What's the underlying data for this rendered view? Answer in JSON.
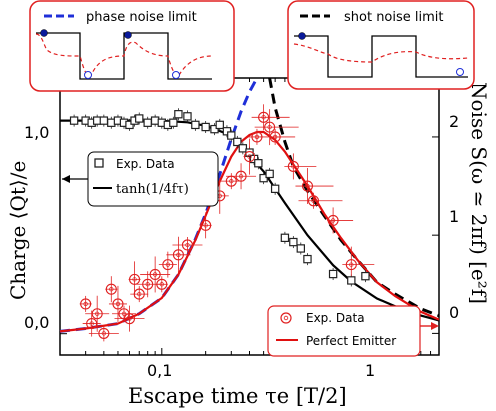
{
  "chart_data": {
    "type": "scatter",
    "x_scale": "log",
    "xlim": [
      0.02,
      8
    ],
    "ylim_left": [
      -0.1,
      1.2
    ],
    "ylim_right": [
      -0.22,
      2.6
    ],
    "xlabel": "Escape time τe   [T/2]",
    "ylabel_left": "Charge ⟨Qt⟩/e",
    "ylabel_right": "Noise S(ω ≃ 2πf)   [e²f]",
    "x_ticks": [
      {
        "value": 0.1,
        "label": "0,1"
      },
      {
        "value": 1,
        "label": "1"
      }
    ],
    "y_left_ticks": [
      {
        "value": 0,
        "label": "0,0"
      },
      {
        "value": 1,
        "label": "1,0"
      }
    ],
    "y_right_ticks": [
      {
        "value": 0,
        "label": "0"
      },
      {
        "value": 1,
        "label": "1"
      },
      {
        "value": 2,
        "label": "2"
      }
    ],
    "series": [
      {
        "name": "Exp. Data",
        "axis": "left",
        "marker": "square",
        "color": "#222222",
        "x": [
          0.025,
          0.03,
          0.033,
          0.036,
          0.04,
          0.045,
          0.05,
          0.055,
          0.06,
          0.065,
          0.07,
          0.08,
          0.09,
          0.1,
          0.11,
          0.12,
          0.13,
          0.15,
          0.17,
          0.2,
          0.23,
          0.25,
          0.28,
          0.3,
          0.33,
          0.36,
          0.4,
          0.43,
          0.46,
          0.5,
          0.55,
          0.6,
          0.7,
          0.8,
          0.9,
          1.0,
          1.5,
          2.0,
          2.5
        ],
        "y": [
          1.0,
          1.0,
          0.99,
          1.0,
          1.0,
          0.99,
          1.0,
          0.99,
          0.98,
          1.0,
          1.01,
          0.99,
          1.0,
          0.99,
          0.98,
          0.99,
          1.03,
          1.02,
          0.98,
          0.97,
          0.96,
          0.98,
          0.95,
          0.93,
          0.9,
          0.87,
          0.85,
          0.82,
          0.8,
          0.73,
          0.75,
          0.68,
          0.45,
          0.43,
          0.4,
          0.35,
          0.28,
          0.25,
          0.27
        ]
      },
      {
        "name": "tanh(1/4fτ)",
        "axis": "left",
        "kind": "line",
        "color": "#000000",
        "x": [
          0.02,
          0.05,
          0.1,
          0.15,
          0.2,
          0.3,
          0.5,
          0.7,
          1,
          1.5,
          2,
          3,
          5,
          8
        ],
        "y": [
          1.0,
          1.0,
          0.9993,
          0.992,
          0.9757,
          0.9309,
          0.7616,
          0.6135,
          0.4621,
          0.3215,
          0.2449,
          0.1651,
          0.0997,
          0.0624
        ]
      },
      {
        "name": "phase noise limit",
        "axis": "right",
        "kind": "line",
        "style": "dashed",
        "color": "#1f2fd8",
        "x": [
          0.02,
          0.03,
          0.05,
          0.07,
          0.1,
          0.13,
          0.17,
          0.2,
          0.25,
          0.3,
          0.35,
          0.4,
          0.45
        ],
        "y": [
          0.02,
          0.05,
          0.1,
          0.2,
          0.36,
          0.6,
          0.96,
          1.22,
          1.62,
          1.98,
          2.26,
          2.46,
          2.6
        ]
      },
      {
        "name": "shot noise limit",
        "axis": "right",
        "kind": "line",
        "style": "dashed",
        "color": "#000000",
        "x": [
          0.55,
          0.6,
          0.7,
          0.8,
          1.0,
          1.3,
          1.7,
          2.2,
          3.0,
          4.0,
          6.0,
          8.0
        ],
        "y": [
          2.6,
          2.3,
          1.95,
          1.7,
          1.45,
          1.2,
          0.95,
          0.75,
          0.52,
          0.4,
          0.25,
          0.18
        ]
      },
      {
        "name": "Exp. Data",
        "axis": "right",
        "marker": "circle",
        "color": "#e02020",
        "x": [
          0.03,
          0.033,
          0.036,
          0.04,
          0.045,
          0.05,
          0.055,
          0.06,
          0.065,
          0.07,
          0.08,
          0.09,
          0.1,
          0.11,
          0.13,
          0.15,
          0.2,
          0.25,
          0.3,
          0.35,
          0.4,
          0.45,
          0.5,
          0.55,
          0.6,
          0.8,
          1.0,
          1.1,
          1.5,
          2.0
        ],
        "y": [
          0.3,
          0.1,
          0.2,
          0.0,
          0.45,
          0.3,
          0.2,
          0.15,
          0.55,
          0.4,
          0.5,
          0.6,
          0.5,
          0.7,
          0.8,
          0.9,
          1.1,
          1.4,
          1.55,
          1.6,
          1.8,
          2.0,
          2.2,
          2.1,
          2.0,
          1.7,
          1.5,
          1.35,
          1.15,
          0.7
        ]
      },
      {
        "name": "Perfect Emitter",
        "axis": "right",
        "kind": "line",
        "color": "#e01010",
        "x": [
          0.02,
          0.03,
          0.05,
          0.07,
          0.1,
          0.13,
          0.17,
          0.2,
          0.25,
          0.3,
          0.35,
          0.4,
          0.45,
          0.5,
          0.6,
          0.7,
          0.8,
          1.0,
          1.3,
          1.7,
          2.2,
          3.0,
          4.0,
          6.0,
          8.0
        ],
        "y": [
          0.02,
          0.05,
          0.1,
          0.2,
          0.36,
          0.6,
          0.95,
          1.2,
          1.55,
          1.8,
          1.95,
          2.02,
          2.05,
          2.05,
          1.97,
          1.85,
          1.72,
          1.5,
          1.22,
          0.97,
          0.75,
          0.52,
          0.38,
          0.22,
          0.14
        ]
      }
    ],
    "legends": {
      "left": {
        "position": "center-left",
        "items": [
          "Exp. Data",
          "tanh(1/4fτ)"
        ]
      },
      "right": {
        "position": "bottom-right",
        "items": [
          "Exp. Data",
          "Perfect Emitter"
        ]
      }
    },
    "insets": [
      {
        "label": "phase noise limit",
        "position": "top-left"
      },
      {
        "label": "shot noise limit",
        "position": "top-right"
      }
    ]
  }
}
